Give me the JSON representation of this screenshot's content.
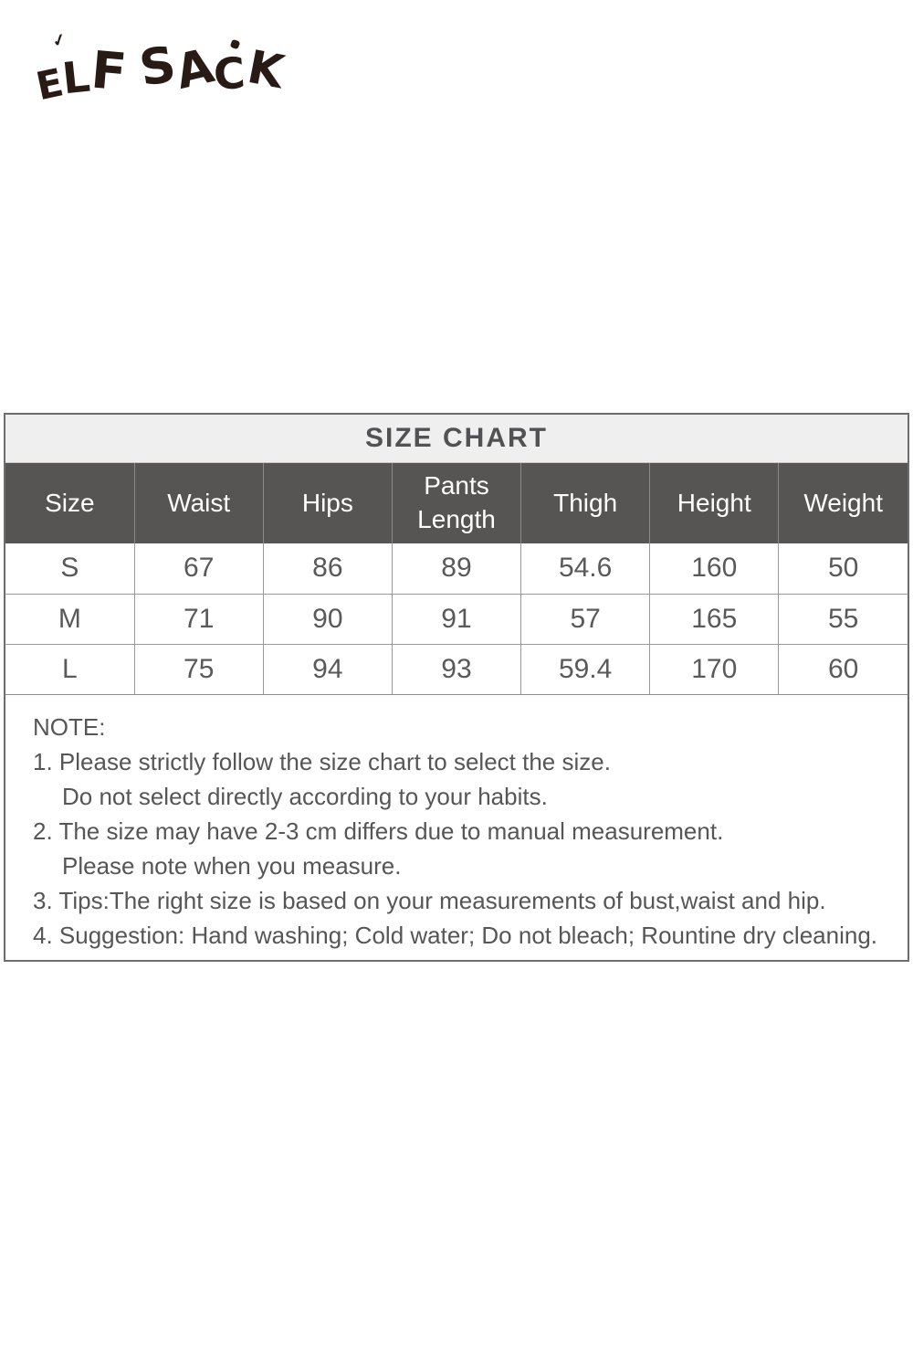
{
  "logo": {
    "letters": [
      "E",
      "L",
      "F",
      "S",
      "A",
      "C",
      "K"
    ],
    "color": "#281b15"
  },
  "chart_data": {
    "type": "table",
    "title": "SIZE CHART",
    "columns": [
      "Size",
      "Waist",
      "Hips",
      "Pants Length",
      "Thigh",
      "Height",
      "Weight"
    ],
    "rows": [
      [
        "S",
        67,
        86,
        89,
        54.6,
        160,
        50
      ],
      [
        "M",
        71,
        90,
        91,
        57,
        165,
        55
      ],
      [
        "L",
        75,
        94,
        93,
        59.4,
        170,
        60
      ]
    ],
    "layout": {
      "title_bg": "#efefef",
      "title_text": "#525254",
      "header_bg": "#575454",
      "header_text": "#ffffff",
      "cell_text": "#595959",
      "border_color": "#9b9b9b",
      "grid": "on"
    }
  },
  "notes": {
    "heading": "NOTE:",
    "lines": [
      {
        "text": "1. Please strictly follow the size chart to select the size."
      },
      {
        "text": "Do not select directly according to your habits."
      },
      {
        "text": "2. The size may have 2-3 cm differs due to manual measurement."
      },
      {
        "text": "Please note when you measure."
      },
      {
        "text": "3. Tips:The right size is based on your measurements of bust,waist and hip."
      },
      {
        "text": "4. Suggestion: Hand washing; Cold water; Do not bleach; Rountine dry cleaning."
      }
    ]
  }
}
